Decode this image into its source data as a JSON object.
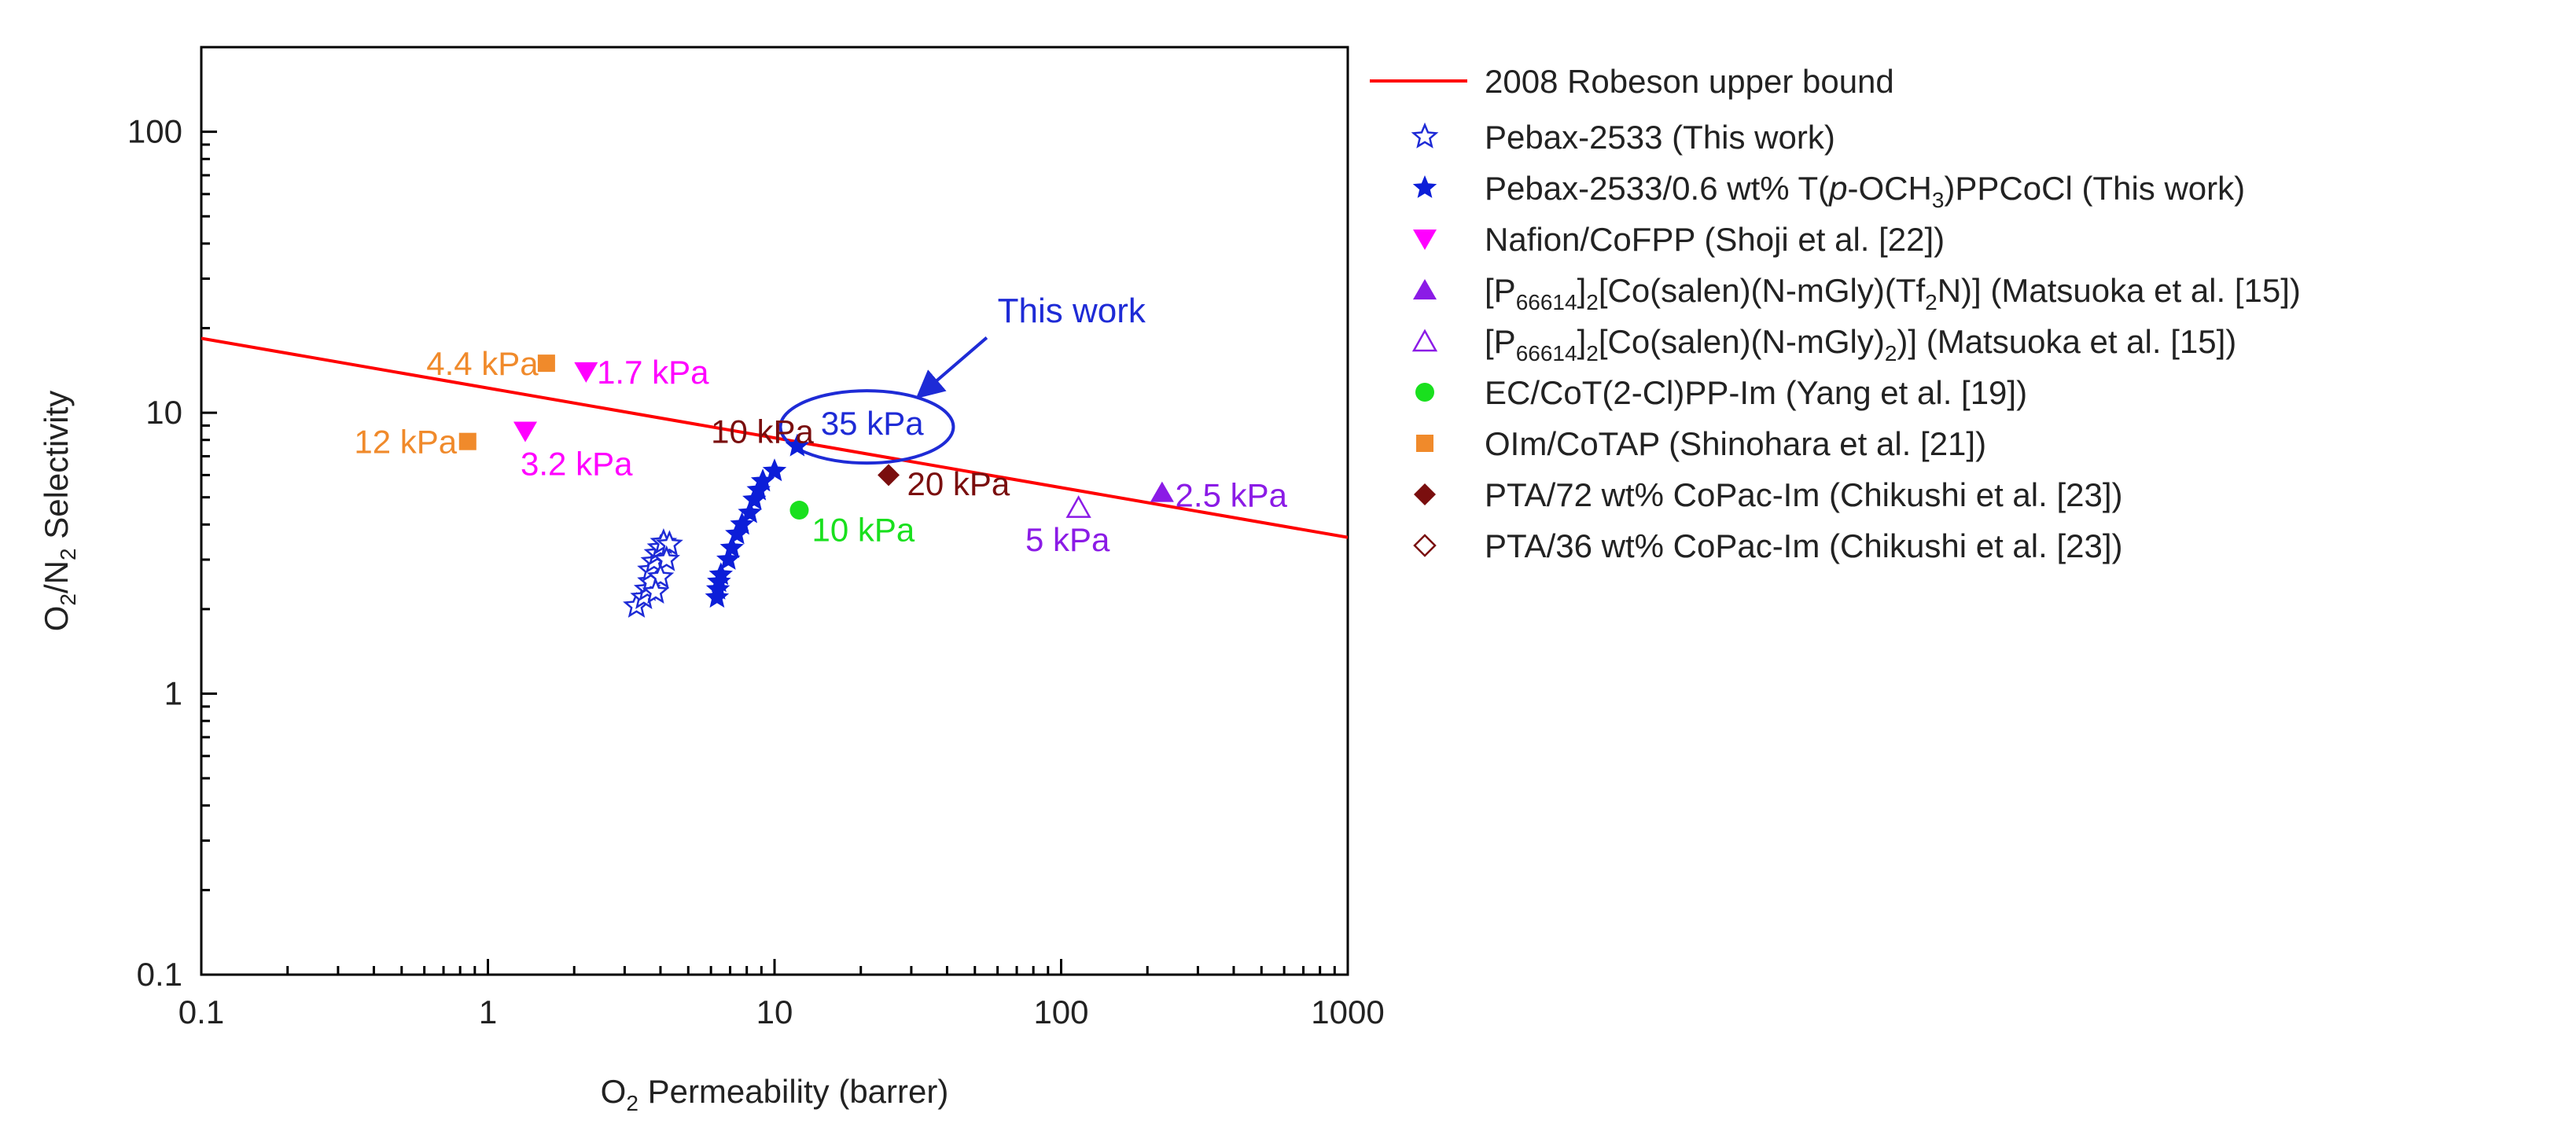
{
  "chart_data": {
    "type": "scatter",
    "title": "",
    "xlabel": {
      "base": "O",
      "sub": "2",
      "rest": " Permeability (barrer)"
    },
    "ylabel": {
      "a": "O",
      "a_sub": "2",
      "b": "/N",
      "b_sub": "2",
      "c": " Selectivity"
    },
    "x_scale": "log",
    "y_scale": "log",
    "xlim": [
      0.1,
      1000
    ],
    "ylim": [
      0.1,
      200
    ],
    "x_ticks": [
      {
        "v": 0.1,
        "label": "0.1"
      },
      {
        "v": 1,
        "label": "1"
      },
      {
        "v": 10,
        "label": "10"
      },
      {
        "v": 100,
        "label": "100"
      },
      {
        "v": 1000,
        "label": "1000"
      }
    ],
    "y_ticks": [
      {
        "v": 0.1,
        "label": "0.1"
      },
      {
        "v": 1,
        "label": "1"
      },
      {
        "v": 10,
        "label": "10"
      },
      {
        "v": 100,
        "label": "100"
      }
    ],
    "grid": false,
    "legend_position": "right-outside",
    "upper_bound": {
      "name": "2008 Robeson upper bound",
      "color": "#ff0000",
      "x": [
        0.1,
        1000
      ],
      "y": [
        18.4,
        3.6
      ]
    },
    "series": [
      {
        "name": "Pebax-2533 (This work)",
        "marker": "star-open",
        "color": "#1e2bd6",
        "points": [
          [
            3.3,
            2.05
          ],
          [
            3.5,
            2.2
          ],
          [
            3.6,
            2.35
          ],
          [
            3.7,
            2.5
          ],
          [
            3.7,
            2.75
          ],
          [
            3.8,
            2.95
          ],
          [
            3.9,
            3.15
          ],
          [
            4.0,
            3.3
          ],
          [
            4.1,
            3.45
          ],
          [
            4.3,
            3.4
          ],
          [
            4.2,
            3.0
          ],
          [
            4.0,
            2.6
          ],
          [
            3.85,
            2.3
          ]
        ]
      },
      {
        "name": "Pebax-2533/0.6 wt% T(p-OCH3)PPCoCl (This work)",
        "legend_parts": [
          "Pebax-2533/0.6 wt% T(",
          "p",
          "-OCH",
          "3",
          ")PPCoCl (This work)"
        ],
        "marker": "star-filled",
        "color": "#0c1ed8",
        "points": [
          [
            6.3,
            2.2
          ],
          [
            6.35,
            2.35
          ],
          [
            6.4,
            2.5
          ],
          [
            6.5,
            2.65
          ],
          [
            6.9,
            3.0
          ],
          [
            7.1,
            3.3
          ],
          [
            7.4,
            3.7
          ],
          [
            7.7,
            4.0
          ],
          [
            8.2,
            4.4
          ],
          [
            8.5,
            4.9
          ],
          [
            8.8,
            5.3
          ],
          [
            9.1,
            5.7
          ],
          [
            10.0,
            6.2
          ],
          [
            12.0,
            7.6
          ]
        ]
      },
      {
        "name": "Nafion/CoFPP (Shoji et al. [22])",
        "marker": "triangle-down",
        "color": "#ff00ff",
        "points": [
          [
            2.2,
            14.0
          ],
          [
            1.35,
            8.6
          ]
        ]
      },
      {
        "name": "[P66614]2[Co(salen)(N-mGly)(Tf2N)] (Matsuoka et al. [15])",
        "legend_parts": [
          "[P",
          "66614",
          "]",
          "2",
          "[Co(salen)(N-mGly)(Tf",
          "2",
          "N)] (Matsuoka et al. [15])"
        ],
        "marker": "triangle-up",
        "color": "#8b1be6",
        "points": [
          [
            225,
            5.2
          ]
        ]
      },
      {
        "name": "[P66614]2[Co(salen)(N-mGly)2)] (Matsuoka et al. [15])",
        "legend_parts": [
          "[P",
          "66614",
          "]",
          "2",
          "[Co(salen)(N-mGly)",
          "2",
          ")] (Matsuoka et al. [15])"
        ],
        "marker": "triangle-up-open",
        "color": "#8b1be6",
        "points": [
          [
            115,
            4.6
          ]
        ]
      },
      {
        "name": "EC/CoT(2-Cl)PP-Im (Yang et al. [19])",
        "marker": "circle",
        "color": "#19e01e",
        "points": [
          [
            12.2,
            4.5
          ]
        ]
      },
      {
        "name": "OIm/CoTAP (Shinohara et al. [21])",
        "marker": "square",
        "color": "#f08a2b",
        "points": [
          [
            1.6,
            15.0
          ],
          [
            0.85,
            7.9
          ]
        ]
      },
      {
        "name": "PTA/72 wt% CoPac-Im (Chikushi et al. [23])",
        "marker": "diamond",
        "color": "#7a0e0e",
        "points": [
          [
            25.0,
            6.0
          ]
        ]
      },
      {
        "name": "PTA/36 wt% CoPac-Im (Chikushi et al. [23])",
        "marker": "diamond-open",
        "color": "#7a0e0e",
        "points": []
      }
    ],
    "annotations": [
      {
        "text": "4.4 kPa",
        "color": "#f08a2b",
        "x": 1.5,
        "y": 15.0,
        "anchor": "end"
      },
      {
        "text": "1.7 kPa",
        "color": "#ff00ff",
        "x": 2.4,
        "y": 14.0,
        "anchor": "start"
      },
      {
        "text": "12 kPa",
        "color": "#f08a2b",
        "x": 0.78,
        "y": 7.9,
        "anchor": "end"
      },
      {
        "text": "3.2 kPa",
        "color": "#ff00ff",
        "x": 1.3,
        "y": 6.6,
        "anchor": "start"
      },
      {
        "text": "10 kPa",
        "color": "#7a0e0e",
        "x": 6.0,
        "y": 8.6,
        "anchor": "start"
      },
      {
        "text": "20 kPa",
        "color": "#7a0e0e",
        "x": 29.0,
        "y": 5.6,
        "anchor": "start"
      },
      {
        "text": "10 kPa",
        "color": "#19e01e",
        "x": 13.5,
        "y": 3.85,
        "anchor": "start"
      },
      {
        "text": "5 kPa",
        "color": "#8b1be6",
        "x": 75.0,
        "y": 3.55,
        "anchor": "start"
      },
      {
        "text": "2.5 kPa",
        "color": "#8b1be6",
        "x": 250.0,
        "y": 5.1,
        "anchor": "start"
      },
      {
        "text": "35 kPa",
        "color": "#1e2bd6",
        "x": 14.5,
        "y": 9.2,
        "anchor": "start"
      }
    ],
    "callout": {
      "text": "This work",
      "color": "#1e2bd6",
      "ellipse_center": [
        21.0,
        8.9
      ],
      "text_at": [
        60.0,
        21.0
      ],
      "arrow_from": [
        55.0,
        18.5
      ],
      "arrow_to": [
        32.0,
        11.5
      ]
    }
  }
}
